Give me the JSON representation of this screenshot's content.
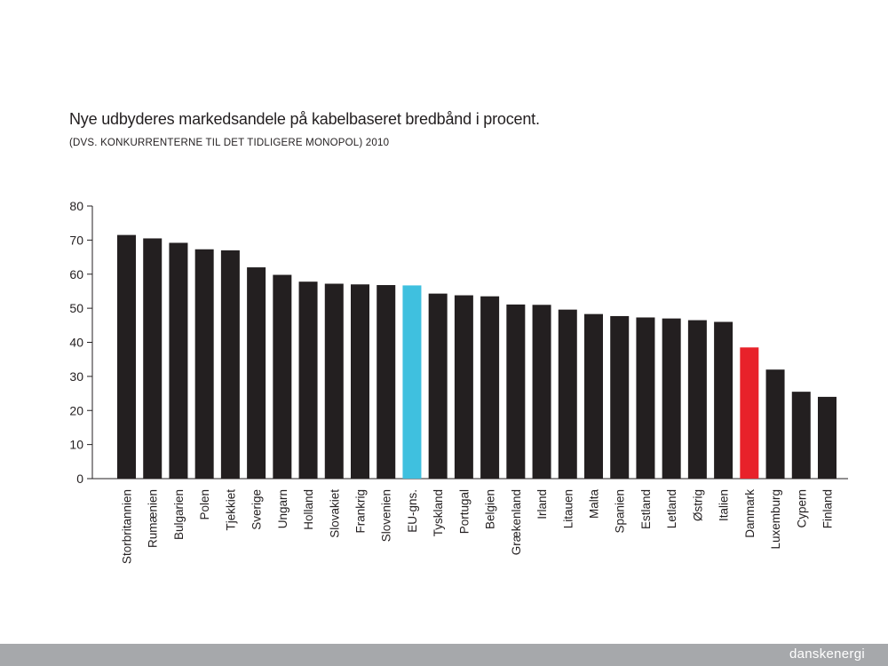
{
  "header": {
    "title": "Nye udbyderes markedsandele på kabelbaseret bredbånd i procent.",
    "subtitle": "(DVS. KONKURRENTERNE TIL DET TIDLIGERE MONOPOL) 2010"
  },
  "footer": {
    "brand": "danskenergi"
  },
  "colors": {
    "default_bar": "#231f20",
    "eu_average_bar": "#3fc0df",
    "denmark_bar": "#e8222a",
    "axis": "#231f20",
    "footer_bg": "#a6a8ab"
  },
  "chart_data": {
    "type": "bar",
    "ylim": [
      0,
      80
    ],
    "yticks": [
      0,
      10,
      20,
      30,
      40,
      50,
      60,
      70,
      80
    ],
    "grid": false,
    "categories": [
      "Storbritannien",
      "Rumænien",
      "Bulgarien",
      "Polen",
      "Tjekkiet",
      "Sverige",
      "Ungarn",
      "Holland",
      "Slovakiet",
      "Frankrig",
      "Slovenien",
      "EU-gns.",
      "Tyskland",
      "Portugal",
      "Belgien",
      "Grækenland",
      "Irland",
      "Litauen",
      "Malta",
      "Spanien",
      "Estland",
      "Letland",
      "Østrig",
      "Italien",
      "Danmark",
      "Luxemburg",
      "Cypern",
      "Finland"
    ],
    "values": [
      71.5,
      70.5,
      69.2,
      67.3,
      67.0,
      62.0,
      59.8,
      57.8,
      57.2,
      57.0,
      56.8,
      56.7,
      54.3,
      53.8,
      53.5,
      51.1,
      51.0,
      49.6,
      48.3,
      47.7,
      47.3,
      47.0,
      46.5,
      46.0,
      38.5,
      32.0,
      25.5,
      24.0
    ],
    "highlights": {
      "EU-gns.": "eu_average_bar",
      "Danmark": "denmark_bar"
    }
  }
}
